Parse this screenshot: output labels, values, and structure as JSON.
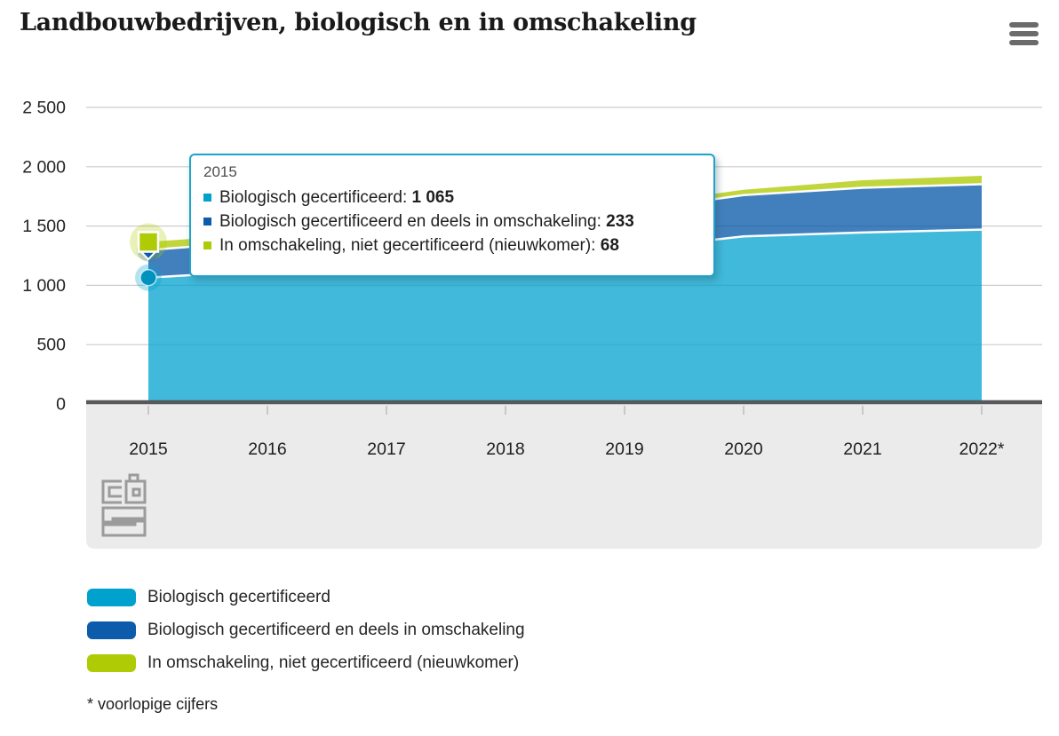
{
  "header": {
    "title": "Landbouwbedrijven, biologisch en in omschakeling",
    "menu_icon": "hamburger-menu"
  },
  "footnote": "* voorlopige cijfers",
  "watermark": "cbs",
  "colors": {
    "cyan": "#00a1cd",
    "blue": "#0d5cab",
    "green": "#afcb05",
    "axis_line": "#58595b",
    "grid_line": "#cccccc",
    "plot_band_bg": "#ebebeb",
    "tick": "#c8c8c8",
    "logo_gray": "#9b9b9b",
    "tooltip_border": "#1fa3c9"
  },
  "tooltip": {
    "header": "2015",
    "rows": [
      {
        "label": "Biologisch gecertificeerd",
        "value": "1 065",
        "color": "#00a1cd"
      },
      {
        "label": "Biologisch gecertificeerd en deels in omschakeling",
        "value": "233",
        "color": "#0d5cab"
      },
      {
        "label": "In omschakeling, niet gecertificeerd (nieuwkomer)",
        "value": "68",
        "color": "#afcb05"
      }
    ]
  },
  "chart_data": {
    "type": "area",
    "stacked": true,
    "title": "Landbouwbedrijven, biologisch en in omschakeling",
    "x": [
      "2015",
      "2016",
      "2017",
      "2018",
      "2019",
      "2020",
      "2021",
      "2022*"
    ],
    "series": [
      {
        "name": "Biologisch gecertificeerd",
        "color": "#00a1cd",
        "values": [
          1065,
          1125,
          1180,
          1240,
          1300,
          1413,
          1446,
          1470
        ]
      },
      {
        "name": "Biologisch gecertificeerd en deels in omschakeling",
        "color": "#0d5cab",
        "values": [
          233,
          250,
          270,
          290,
          320,
          348,
          377,
          383
        ]
      },
      {
        "name": "In omschakeling, niet gecertificeerd (nieuwkomer)",
        "color": "#afcb05",
        "values": [
          68,
          62,
          58,
          52,
          48,
          45,
          63,
          71
        ]
      }
    ],
    "yticks": [
      {
        "value": 0,
        "label": "0"
      },
      {
        "value": 500,
        "label": "500"
      },
      {
        "value": 1000,
        "label": "1 000"
      },
      {
        "value": 1500,
        "label": "1 500"
      },
      {
        "value": 2000,
        "label": "2 000"
      },
      {
        "value": 2500,
        "label": "2 500"
      }
    ],
    "ylim": [
      0,
      2500
    ],
    "grid": true,
    "legend_position": "bottom",
    "hover_year_index": 0
  }
}
